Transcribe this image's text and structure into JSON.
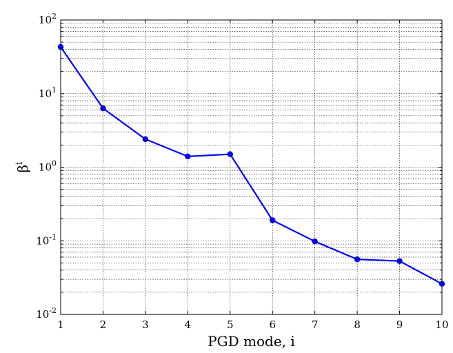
{
  "chart_data": {
    "type": "line",
    "xlabel": "PGD mode, i",
    "ylabel": "β^i",
    "ylabel_base": "β",
    "ylabel_sup": "i",
    "x": [
      1,
      2,
      3,
      4,
      5,
      6,
      7,
      8,
      9,
      10
    ],
    "series": [
      {
        "values": [
          43,
          6.3,
          2.4,
          1.4,
          1.5,
          0.19,
          0.098,
          0.056,
          0.053,
          0.026
        ]
      }
    ],
    "xlim": [
      1,
      10
    ],
    "ylim": [
      0.01,
      100
    ],
    "yscale": "log",
    "grid": true,
    "x_ticks": [
      "1",
      "2",
      "3",
      "4",
      "5",
      "6",
      "7",
      "8",
      "9",
      "10"
    ],
    "y_ticks": [
      {
        "base": "10",
        "exp": "-2",
        "value": 0.01
      },
      {
        "base": "10",
        "exp": "-1",
        "value": 0.1
      },
      {
        "base": "10",
        "exp": "0",
        "value": 1
      },
      {
        "base": "10",
        "exp": "1",
        "value": 10
      },
      {
        "base": "10",
        "exp": "2",
        "value": 100
      }
    ],
    "line_color": "#0000ff",
    "marker_color": "#0000ff"
  }
}
